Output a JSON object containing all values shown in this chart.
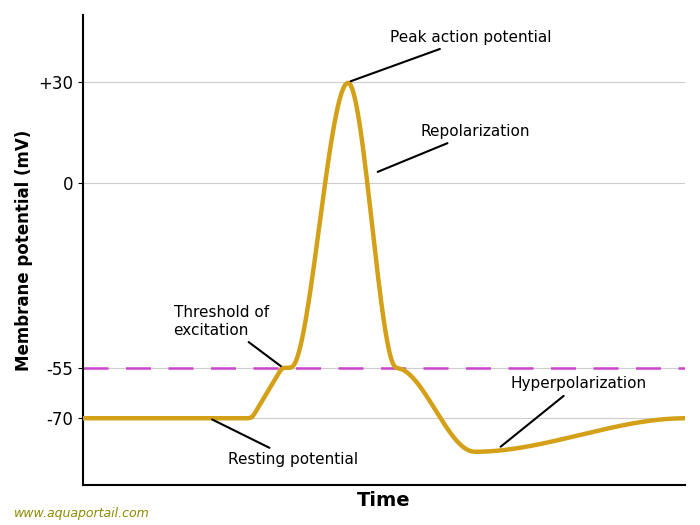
{
  "title": "",
  "xlabel": "Time",
  "ylabel": "Membrane potential (mV)",
  "background_color": "#ffffff",
  "line_color": "#D4A017",
  "line_width": 3.2,
  "threshold_color": "#CC44CC",
  "threshold_value": -55,
  "resting_value": -70,
  "peak_value": 30,
  "hyperpolarization_trough": -80,
  "yticks": [
    -70,
    -55,
    0,
    30
  ],
  "ytick_labels": [
    "-70",
    "-55",
    "0",
    "+30"
  ],
  "ylim": [
    -90,
    50
  ],
  "xlim": [
    0,
    10
  ],
  "grid_color": "#cccccc",
  "watermark": "www.aquaportail.com",
  "watermark_color": "#8B8B00",
  "font_size_annot": 11,
  "font_size_axis_label": 12,
  "font_size_xlabel": 14,
  "font_size_ticks": 12
}
